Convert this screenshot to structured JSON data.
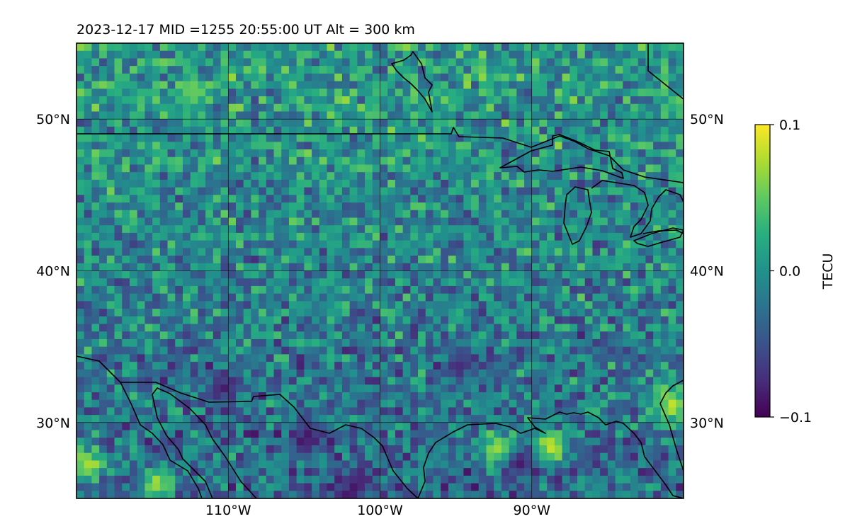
{
  "chart_data": {
    "type": "heatmap",
    "title": "2023-12-17  MID =1255    20:55:00  UT  Alt = 300 km",
    "map": {
      "lon_range": [
        -120,
        -80
      ],
      "lat_range": [
        25,
        55
      ],
      "lon_ticks": [
        -110,
        -100,
        -90
      ],
      "lon_tick_labels": [
        "110°W",
        "100°W",
        "90°W"
      ],
      "lat_ticks": [
        30,
        40,
        50
      ],
      "lat_tick_labels": [
        "30°N",
        "40°N",
        "50°N"
      ],
      "grid": true,
      "coastlines": true,
      "cell_size_deg": 0.5
    },
    "colorbar": {
      "label": "TECU",
      "range": [
        -0.1,
        0.1
      ],
      "ticks": [
        0.1,
        0.0,
        -0.1
      ],
      "tick_labels": [
        "0.1",
        "0.0",
        "−0.1"
      ],
      "colormap": "viridis",
      "position": "right"
    },
    "field_description_values": {
      "min": -0.1,
      "max": 0.1,
      "mean_north": 0.01,
      "mean_south": -0.03,
      "hotspots": [
        {
          "lon": -119.5,
          "lat": 27,
          "value": 0.09
        },
        {
          "lon": -115,
          "lat": 25.8,
          "value": 0.08
        },
        {
          "lon": -92.5,
          "lat": 28,
          "value": 0.1
        },
        {
          "lon": -89,
          "lat": 28.2,
          "value": 0.1
        },
        {
          "lon": -81,
          "lat": 30.8,
          "value": 0.1
        },
        {
          "lon": -112.5,
          "lat": 51.3,
          "value": 0.06
        }
      ],
      "lows": [
        {
          "lon": -110.5,
          "lat": 32,
          "value": -0.09
        },
        {
          "lon": -105,
          "lat": 28.8,
          "value": -0.1
        },
        {
          "lon": -102,
          "lat": 25.6,
          "value": -0.1
        },
        {
          "lon": -95,
          "lat": 33.5,
          "value": -0.08
        },
        {
          "lon": -91,
          "lat": 27,
          "value": -0.09
        }
      ]
    }
  },
  "colors": {
    "viridis_low": "#440154",
    "viridis_mid": "#21918c",
    "viridis_high": "#fde725",
    "coastline": "#000000",
    "grid": "#000000"
  }
}
